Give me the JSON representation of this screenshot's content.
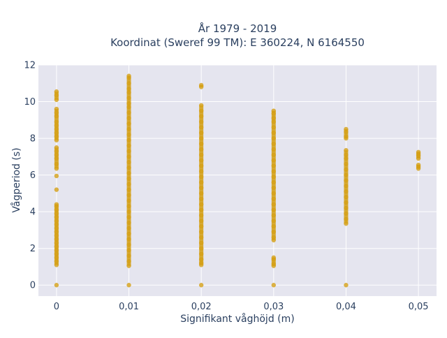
{
  "chart_data": {
    "type": "scatter",
    "title": "År 1979 - 2019",
    "subtitle": "Koordinat (Sweref 99 TM): E 360224, N 6164550",
    "xlabel": "Signifikant våghöjd (m)",
    "ylabel": "Vågperiod (s)",
    "xlim": [
      -0.0025,
      0.0525
    ],
    "ylim": [
      -0.6,
      12
    ],
    "x_ticks": [
      0,
      0.01,
      0.02,
      0.03,
      0.04,
      0.05
    ],
    "x_tick_labels": [
      "0",
      "0,01",
      "0,02",
      "0,03",
      "0,04",
      "0,05"
    ],
    "y_ticks": [
      0,
      2,
      4,
      6,
      8,
      10,
      12
    ],
    "y_tick_labels": [
      "0",
      "2",
      "4",
      "6",
      "8",
      "10",
      "12"
    ],
    "grid": true,
    "marker_color": "#d4a017",
    "plot_bg": "#e5e5ef",
    "series": [
      {
        "x": 0,
        "y": [
          0,
          1.1,
          1.3,
          1.5,
          1.7,
          1.9,
          2.1,
          2.3,
          2.5,
          2.7,
          2.9,
          3.1,
          3.3,
          3.5,
          3.7,
          3.9,
          4.1,
          4.3,
          4.4,
          5.2,
          5.95,
          6.35,
          6.6,
          6.9,
          7.1,
          7.3,
          7.5,
          7.9,
          8.1,
          8.3,
          8.5,
          8.7,
          8.9,
          9.2,
          9.4,
          9.6,
          10.1,
          10.35,
          10.55
        ]
      },
      {
        "x": 0.01,
        "y": [
          0,
          1.05,
          1.3,
          1.6,
          1.9,
          2.2,
          2.5,
          2.8,
          3.1,
          3.4,
          3.7,
          4.0,
          4.3,
          4.6,
          4.9,
          5.2,
          5.5,
          5.8,
          6.1,
          6.4,
          6.7,
          7.0,
          7.3,
          7.6,
          7.9,
          8.2,
          8.5,
          8.8,
          9.1,
          9.4,
          9.7,
          9.9,
          10.2,
          10.5,
          10.7,
          11.0,
          11.3,
          11.4
        ]
      },
      {
        "x": 0.02,
        "y": [
          0,
          1.1,
          1.2,
          1.4,
          1.7,
          2.0,
          2.3,
          2.6,
          2.9,
          3.2,
          3.5,
          3.8,
          4.1,
          4.4,
          4.7,
          5.0,
          5.3,
          5.6,
          5.9,
          6.2,
          6.5,
          6.8,
          7.1,
          7.4,
          7.7,
          8.0,
          8.3,
          8.6,
          8.9,
          9.2,
          9.5,
          9.8,
          10.8,
          10.9
        ]
      },
      {
        "x": 0.03,
        "y": [
          0,
          1.05,
          1.15,
          1.4,
          1.5,
          2.45,
          2.6,
          2.9,
          3.2,
          3.5,
          3.8,
          4.1,
          4.4,
          4.7,
          5.0,
          5.3,
          5.6,
          5.9,
          6.2,
          6.5,
          6.8,
          7.1,
          7.4,
          7.7,
          8.0,
          8.3,
          8.6,
          8.9,
          9.1,
          9.35,
          9.5
        ]
      },
      {
        "x": 0.04,
        "y": [
          0,
          3.35,
          3.6,
          3.9,
          4.2,
          4.5,
          4.8,
          5.1,
          5.4,
          5.7,
          6.0,
          6.3,
          6.6,
          6.9,
          7.1,
          7.35,
          8.0,
          8.1,
          8.35,
          8.5
        ]
      },
      {
        "x": 0.05,
        "y": [
          6.35,
          6.45,
          6.55,
          6.9,
          7.05,
          7.15,
          7.25
        ]
      }
    ]
  }
}
